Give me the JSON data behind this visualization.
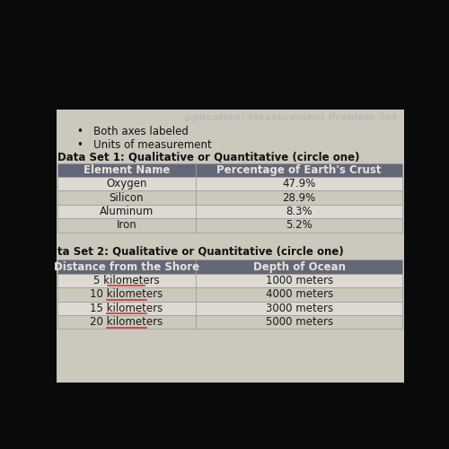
{
  "title_partial": "pplication: Measurement Problem Set",
  "bullets": [
    "Both axes labeled",
    "Units of measurement"
  ],
  "dataset1_label": "Data Set 1: Qualitative or Quantitative (circle one)",
  "dataset1_headers": [
    "Element Name",
    "Percentage of Earth's Crust"
  ],
  "dataset1_rows": [
    [
      "Oxygen",
      "47.9%"
    ],
    [
      "Silicon",
      "28.9%"
    ],
    [
      "Aluminum",
      "8.3%"
    ],
    [
      "Iron",
      "5.2%"
    ]
  ],
  "dataset2_label": "ta Set 2: Qualitative or Quantitative (circle one)",
  "dataset2_headers": [
    "Distance from the Shore",
    "Depth of Ocean"
  ],
  "dataset2_rows": [
    [
      "5 kilometers",
      "1000 meters"
    ],
    [
      "10 kilometers",
      "4000 meters"
    ],
    [
      "15 kilometers",
      "3000 meters"
    ],
    [
      "20 kilometers",
      "5000 meters"
    ]
  ],
  "bg_color": "#0a0a0a",
  "page_bg": "#cdc8bc",
  "header_bg": "#636878",
  "header_text": "#e8e4dc",
  "row_odd_bg": "#dedad2",
  "row_even_bg": "#ccc8bc",
  "table_border": "#999999",
  "text_color": "#1a1a1a",
  "label_text_color": "#111111",
  "title_text_color": "#bbbbbb",
  "underline_color": "#cc3333",
  "bullet_color": "#111111"
}
